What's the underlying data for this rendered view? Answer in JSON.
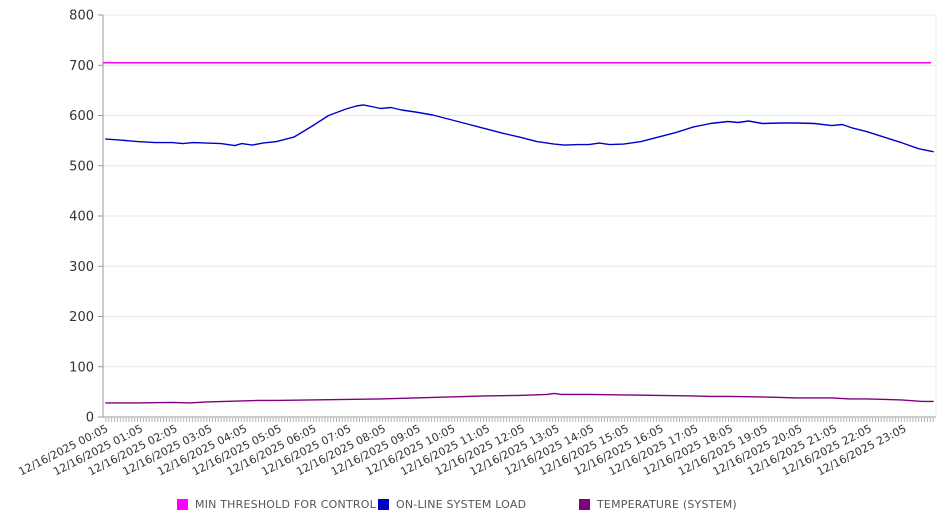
{
  "chart_data": {
    "type": "line",
    "title": "",
    "xlabel": "",
    "ylabel": "",
    "ylim": [
      0,
      800
    ],
    "y_ticks": [
      0,
      100,
      200,
      300,
      400,
      500,
      600,
      700,
      800
    ],
    "grid": "horizontal",
    "legend_position": "bottom",
    "minor_tick_count": 288,
    "x_tick_labels": [
      "12/16/2025 00:05",
      "12/16/2025 01:05",
      "12/16/2025 02:05",
      "12/16/2025 03:05",
      "12/16/2025 04:05",
      "12/16/2025 05:05",
      "12/16/2025 06:05",
      "12/16/2025 07:05",
      "12/16/2025 08:05",
      "12/16/2025 09:05",
      "12/16/2025 10:05",
      "12/16/2025 11:05",
      "12/16/2025 12:05",
      "12/16/2025 13:05",
      "12/16/2025 14:05",
      "12/16/2025 15:05",
      "12/16/2025 16:05",
      "12/16/2025 17:05",
      "12/16/2025 18:05",
      "12/16/2025 19:05",
      "12/16/2025 20:05",
      "12/16/2025 21:05",
      "12/16/2025 22:05",
      "12/16/2025 23:05"
    ],
    "series": [
      {
        "name": "MIN THRESHOLD FOR CONTROL",
        "color": "#f000f0",
        "type": "hline",
        "value": 705
      },
      {
        "name": "ON-LINE SYSTEM LOAD",
        "color": "#0000cc",
        "type": "line",
        "points": [
          [
            0.08,
            553
          ],
          [
            0.5,
            551
          ],
          [
            1,
            548
          ],
          [
            1.5,
            546
          ],
          [
            2,
            546
          ],
          [
            2.3,
            544
          ],
          [
            2.6,
            546
          ],
          [
            3,
            545
          ],
          [
            3.4,
            544
          ],
          [
            3.8,
            540
          ],
          [
            4,
            544
          ],
          [
            4.3,
            541
          ],
          [
            4.6,
            545
          ],
          [
            5,
            548
          ],
          [
            5.5,
            557
          ],
          [
            6,
            578
          ],
          [
            6.5,
            600
          ],
          [
            7,
            613
          ],
          [
            7.3,
            619
          ],
          [
            7.5,
            621
          ],
          [
            7.8,
            617
          ],
          [
            8,
            614
          ],
          [
            8.3,
            616
          ],
          [
            8.6,
            611
          ],
          [
            9,
            607
          ],
          [
            9.5,
            601
          ],
          [
            10,
            592
          ],
          [
            10.5,
            583
          ],
          [
            11,
            574
          ],
          [
            11.5,
            565
          ],
          [
            12,
            557
          ],
          [
            12.5,
            548
          ],
          [
            13,
            543
          ],
          [
            13.3,
            541
          ],
          [
            13.7,
            542
          ],
          [
            14,
            542
          ],
          [
            14.3,
            545
          ],
          [
            14.6,
            542
          ],
          [
            15,
            543
          ],
          [
            15.5,
            548
          ],
          [
            16,
            557
          ],
          [
            16.5,
            566
          ],
          [
            17,
            577
          ],
          [
            17.5,
            584
          ],
          [
            18,
            588
          ],
          [
            18.3,
            586
          ],
          [
            18.6,
            589
          ],
          [
            19,
            584
          ],
          [
            19.5,
            585
          ],
          [
            20,
            585
          ],
          [
            20.5,
            584
          ],
          [
            21,
            580
          ],
          [
            21.3,
            582
          ],
          [
            21.6,
            575
          ],
          [
            22,
            568
          ],
          [
            22.5,
            557
          ],
          [
            23,
            546
          ],
          [
            23.5,
            534
          ],
          [
            23.92,
            528
          ]
        ]
      },
      {
        "name": "TEMPERATURE (SYSTEM)",
        "color": "#800080",
        "type": "line",
        "points": [
          [
            0.08,
            28
          ],
          [
            1,
            28
          ],
          [
            2,
            29
          ],
          [
            2.5,
            28
          ],
          [
            3,
            30
          ],
          [
            3.5,
            31
          ],
          [
            4,
            32
          ],
          [
            4.5,
            33
          ],
          [
            5,
            33
          ],
          [
            6,
            34
          ],
          [
            7,
            35
          ],
          [
            8,
            36
          ],
          [
            9,
            38
          ],
          [
            10,
            40
          ],
          [
            11,
            42
          ],
          [
            12,
            43
          ],
          [
            12.8,
            45
          ],
          [
            13,
            47
          ],
          [
            13.2,
            45
          ],
          [
            14,
            45
          ],
          [
            15,
            44
          ],
          [
            16,
            43
          ],
          [
            17,
            42
          ],
          [
            17.5,
            41
          ],
          [
            18,
            41
          ],
          [
            19,
            40
          ],
          [
            20,
            38
          ],
          [
            21,
            38
          ],
          [
            21.5,
            36
          ],
          [
            22,
            36
          ],
          [
            23,
            34
          ],
          [
            23.6,
            31
          ],
          [
            23.92,
            31
          ]
        ]
      }
    ]
  },
  "legend": {
    "items": [
      {
        "label": "MIN THRESHOLD FOR CONTROL",
        "color": "#ff00ff"
      },
      {
        "label": "ON-LINE SYSTEM LOAD",
        "color": "#0000cc"
      },
      {
        "label": "TEMPERATURE (SYSTEM)",
        "color": "#800080"
      }
    ]
  },
  "axes": {
    "grid_color": "#e8e8e8",
    "axis_color": "#999999",
    "minor_tick_color": "#b3b3b3",
    "label_color": "#333333"
  }
}
